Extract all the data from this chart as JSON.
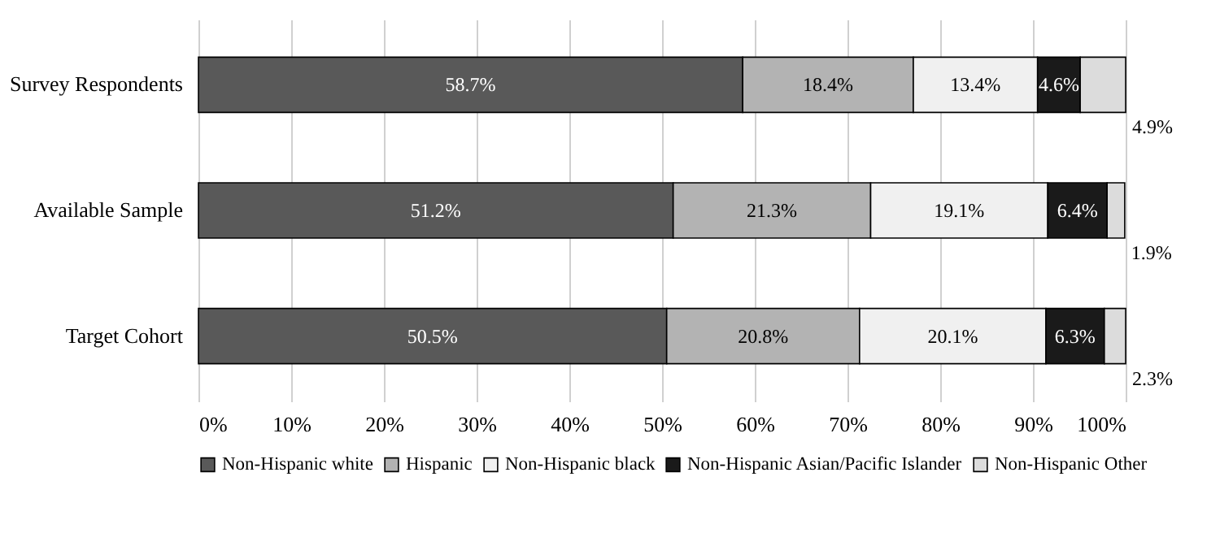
{
  "chart_data": {
    "type": "bar",
    "orientation": "horizontal",
    "stacked": true,
    "categories": [
      "Survey Respondents",
      "Available Sample",
      "Target Cohort"
    ],
    "series": [
      {
        "name": "Non-Hispanic white",
        "color": "#595959",
        "values": [
          58.7,
          51.2,
          50.5
        ],
        "value_labels": [
          "58.7%",
          "51.2%",
          "50.5%"
        ]
      },
      {
        "name": "Hispanic",
        "color": "#b3b3b3",
        "values": [
          18.4,
          21.3,
          20.8
        ],
        "value_labels": [
          "18.4%",
          "21.3%",
          "20.8%"
        ]
      },
      {
        "name": "Non-Hispanic black",
        "color": "#f0f0f0",
        "values": [
          13.4,
          19.1,
          20.1
        ],
        "value_labels": [
          "13.4%",
          "19.1%",
          "20.1%"
        ]
      },
      {
        "name": "Non-Hispanic Asian/Pacific Islander",
        "color": "#1a1a1a",
        "values": [
          4.6,
          6.4,
          6.3
        ],
        "value_labels": [
          "4.6%",
          "6.4%",
          "6.3%"
        ]
      },
      {
        "name": "Non-Hispanic Other",
        "color": "#dcdcdc",
        "values": [
          4.9,
          1.9,
          2.3
        ],
        "value_labels": [
          "4.9%",
          "1.9%",
          "2.3%"
        ]
      }
    ],
    "xlim": [
      0,
      100
    ],
    "xticks": [
      {
        "value": 0,
        "label": "0%"
      },
      {
        "value": 10,
        "label": "10%"
      },
      {
        "value": 20,
        "label": "20%"
      },
      {
        "value": 30,
        "label": "30%"
      },
      {
        "value": 40,
        "label": "40%"
      },
      {
        "value": 50,
        "label": "50%"
      },
      {
        "value": 60,
        "label": "60%"
      },
      {
        "value": 70,
        "label": "70%"
      },
      {
        "value": 80,
        "label": "80%"
      },
      {
        "value": 90,
        "label": "90%"
      },
      {
        "value": 100,
        "label": "100%"
      }
    ],
    "grid": "x",
    "legend": "bottom"
  }
}
